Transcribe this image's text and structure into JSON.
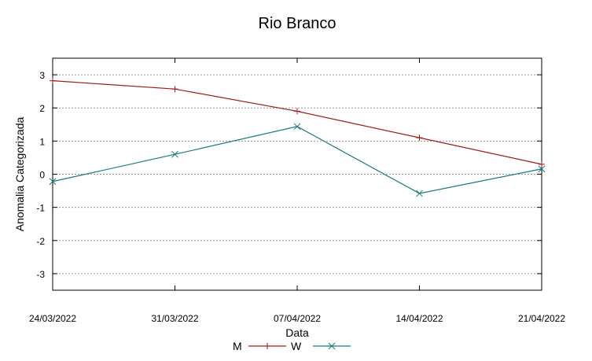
{
  "chart_data": {
    "type": "line",
    "title": "Rio Branco",
    "xlabel": "Data",
    "ylabel": "Anomalia Categorizada",
    "categories": [
      "24/03/2022",
      "31/03/2022",
      "07/04/2022",
      "14/04/2022",
      "21/04/2022"
    ],
    "ylim": [
      -3.5,
      3.5
    ],
    "yticks": [
      -3,
      -2,
      -1,
      0,
      1,
      2,
      3
    ],
    "grid": true,
    "legend_position": "bottom",
    "series": [
      {
        "name": "M",
        "values": [
          2.82,
          2.57,
          1.9,
          1.1,
          0.3
        ],
        "color": "#a11a1a",
        "marker": "plus"
      },
      {
        "name": "W",
        "values": [
          -0.22,
          0.6,
          1.44,
          -0.58,
          0.16
        ],
        "color": "#1a7a7a",
        "marker": "cross"
      }
    ]
  }
}
